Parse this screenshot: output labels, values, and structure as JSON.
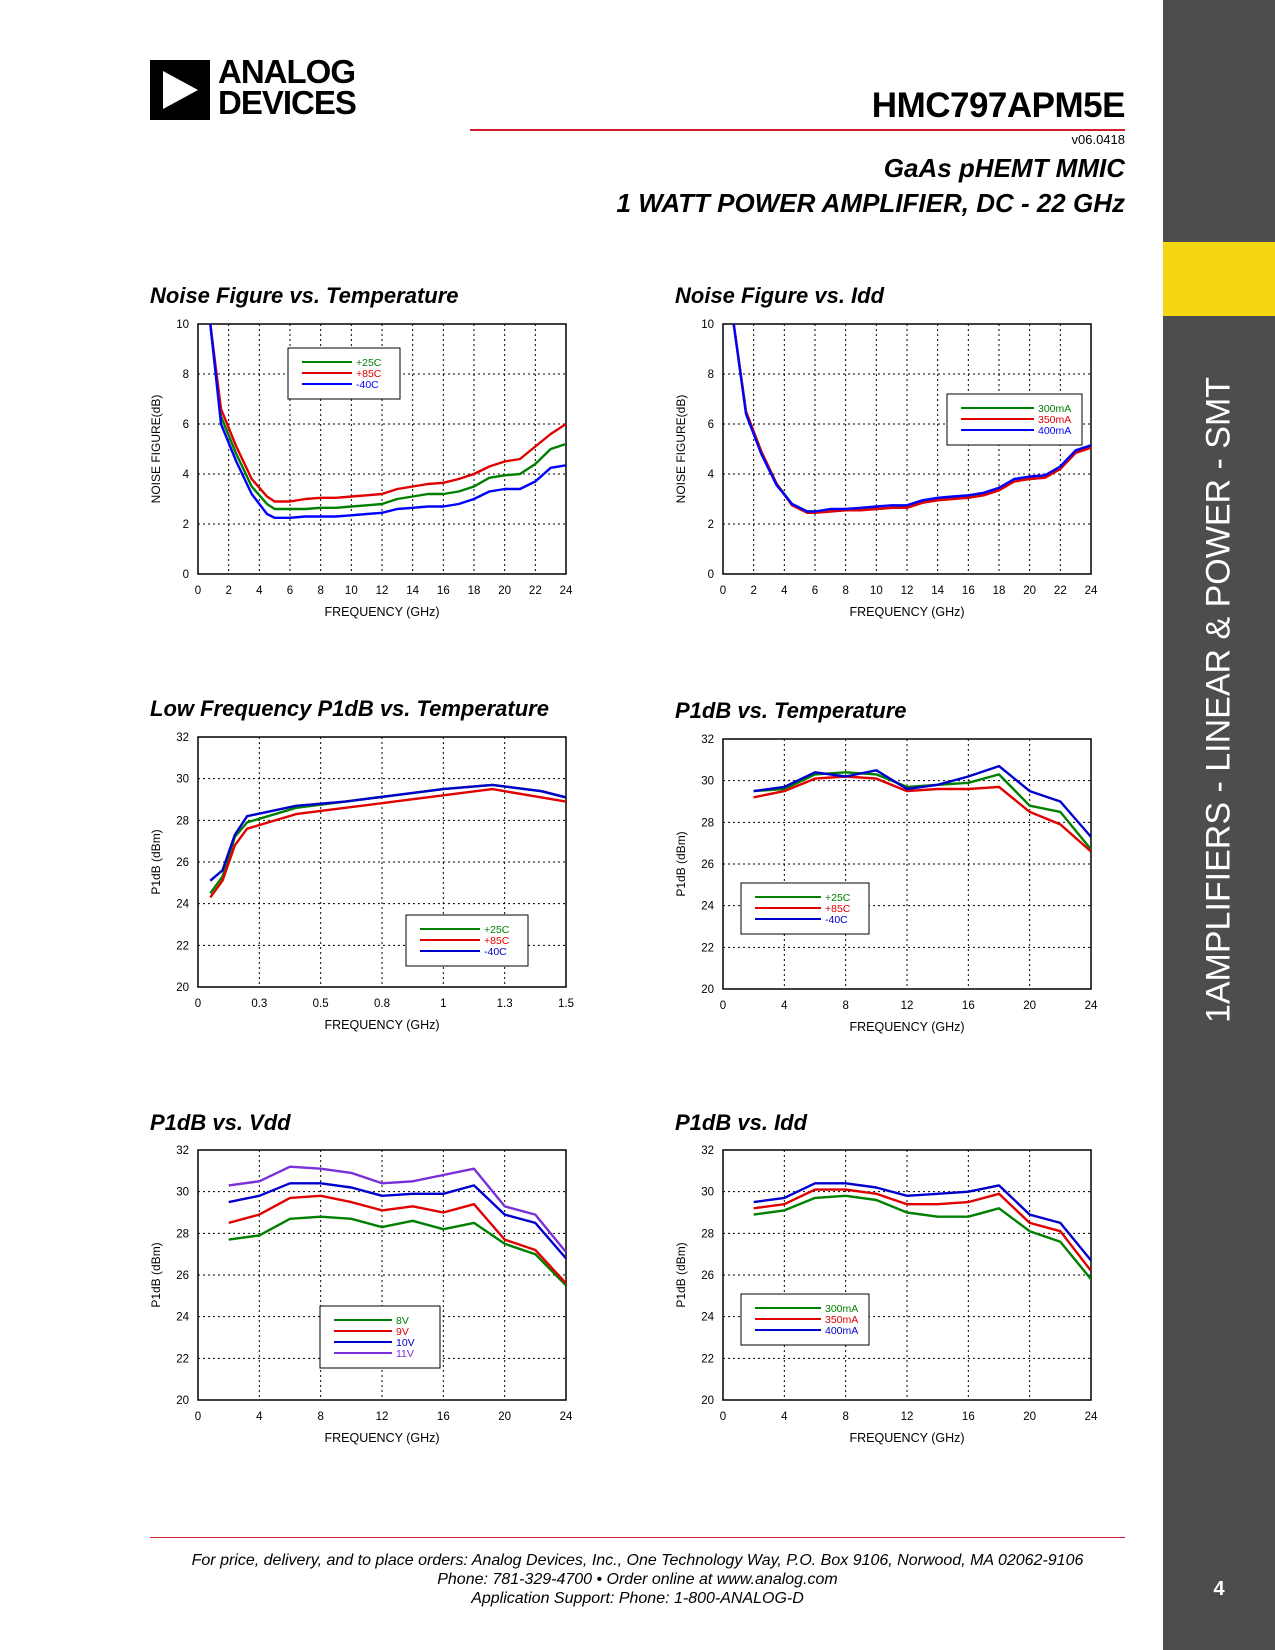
{
  "header": {
    "logo_line1": "ANALOG",
    "logo_line2": "DEVICES",
    "part_number": "HMC797APM5E",
    "version": "v06.0418",
    "subtitle_line1": "GaAs pHEMT MMIC",
    "subtitle_line2": "1 WATT POWER AMPLIFIER, DC - 22 GHz"
  },
  "sidebar": {
    "label": "1AMPLIFIERS - LINEAR & POWER - SMT",
    "page_number": "4",
    "tab_color": "#f5d612",
    "bar_color": "#4d4d4f"
  },
  "footer": {
    "line1": "For price, delivery, and to place orders: Analog Devices, Inc., One Technology Way, P.O. Box 9106, Norwood, MA 02062-9106",
    "line2": "Phone: 781-329-4700 • Order online at www.analog.com",
    "line3": "Application Support: Phone: 1-800-ANALOG-D",
    "rule_color": "#d0202e"
  },
  "chart_data": [
    {
      "id": "nf-temp",
      "type": "line",
      "title": "Noise Figure vs. Temperature",
      "xlabel": "FREQUENCY (GHz)",
      "ylabel": "NOISE FIGURE(dB)",
      "xlim": [
        0,
        24
      ],
      "ylim": [
        0,
        10
      ],
      "xticks": [
        "0",
        "2",
        "4",
        "6",
        "8",
        "10",
        "12",
        "14",
        "16",
        "18",
        "20",
        "22",
        "24"
      ],
      "yticks": [
        "0",
        "2",
        "4",
        "6",
        "8",
        "10"
      ],
      "grid": true,
      "legend": "top-center",
      "series": [
        {
          "name": "+25C",
          "color": "#008000",
          "x": [
            0.8,
            1.5,
            2.5,
            3.5,
            4.5,
            5,
            6,
            7,
            8,
            9,
            10,
            11,
            12,
            13,
            14,
            15,
            16,
            17,
            18,
            19,
            20,
            21,
            22,
            23,
            24
          ],
          "y": [
            10,
            6.3,
            4.8,
            3.5,
            2.8,
            2.6,
            2.6,
            2.6,
            2.65,
            2.65,
            2.7,
            2.75,
            2.8,
            3.0,
            3.1,
            3.2,
            3.2,
            3.3,
            3.5,
            3.85,
            3.95,
            4.0,
            4.4,
            5.0,
            5.2
          ]
        },
        {
          "name": "+85C",
          "color": "#e00000",
          "x": [
            0.8,
            1.5,
            2.5,
            3.5,
            4.5,
            5,
            6,
            7,
            8,
            9,
            10,
            11,
            12,
            13,
            14,
            15,
            16,
            17,
            18,
            19,
            20,
            21,
            22,
            23,
            24
          ],
          "y": [
            10,
            6.6,
            5.1,
            3.8,
            3.1,
            2.9,
            2.9,
            3.0,
            3.05,
            3.05,
            3.1,
            3.15,
            3.2,
            3.4,
            3.5,
            3.6,
            3.65,
            3.8,
            4.0,
            4.3,
            4.5,
            4.6,
            5.1,
            5.6,
            6.0
          ]
        },
        {
          "name": "-40C",
          "color": "#0000ff",
          "x": [
            0.8,
            1.5,
            2.5,
            3.5,
            4.5,
            5,
            6,
            7,
            8,
            9,
            10,
            11,
            12,
            13,
            14,
            15,
            16,
            17,
            18,
            19,
            20,
            21,
            22,
            23,
            24
          ],
          "y": [
            10,
            6.0,
            4.5,
            3.2,
            2.4,
            2.25,
            2.25,
            2.3,
            2.3,
            2.3,
            2.35,
            2.4,
            2.45,
            2.6,
            2.65,
            2.7,
            2.7,
            2.8,
            3.0,
            3.3,
            3.4,
            3.4,
            3.7,
            4.25,
            4.35
          ]
        }
      ]
    },
    {
      "id": "nf-idd",
      "type": "line",
      "title": "Noise Figure vs. Idd",
      "xlabel": "FREQUENCY (GHz)",
      "ylabel": "NOISE FIGURE(dB)",
      "xlim": [
        0,
        24
      ],
      "ylim": [
        0,
        10
      ],
      "xticks": [
        "0",
        "2",
        "4",
        "6",
        "8",
        "10",
        "12",
        "14",
        "16",
        "18",
        "20",
        "22",
        "24"
      ],
      "yticks": [
        "0",
        "2",
        "4",
        "6",
        "8",
        "10"
      ],
      "grid": true,
      "legend": "center-right",
      "series": [
        {
          "name": "300mA",
          "color": "#008000",
          "x": [
            0.7,
            1.5,
            2.5,
            3.5,
            4.5,
            5.5,
            6,
            7,
            8,
            9,
            10,
            11,
            12,
            13,
            14,
            15,
            16,
            17,
            18,
            19,
            20,
            21,
            22,
            23,
            24
          ],
          "y": [
            10,
            6.5,
            4.9,
            3.6,
            2.8,
            2.5,
            2.5,
            2.55,
            2.6,
            2.6,
            2.6,
            2.65,
            2.7,
            2.9,
            3.0,
            3.05,
            3.1,
            3.2,
            3.4,
            3.8,
            3.85,
            3.9,
            4.3,
            4.9,
            5.1
          ]
        },
        {
          "name": "350mA",
          "color": "#e00000",
          "x": [
            0.7,
            1.5,
            2.5,
            3.5,
            4.5,
            5.5,
            6,
            7,
            8,
            9,
            10,
            11,
            12,
            13,
            14,
            15,
            16,
            17,
            18,
            19,
            20,
            21,
            22,
            23,
            24
          ],
          "y": [
            10,
            6.5,
            4.9,
            3.6,
            2.75,
            2.45,
            2.45,
            2.5,
            2.55,
            2.55,
            2.6,
            2.65,
            2.65,
            2.85,
            2.95,
            3.0,
            3.05,
            3.15,
            3.35,
            3.7,
            3.8,
            3.85,
            4.2,
            4.85,
            5.05
          ]
        },
        {
          "name": "400mA",
          "color": "#0000ff",
          "x": [
            0.7,
            1.5,
            2.5,
            3.5,
            4.5,
            5.5,
            6,
            7,
            8,
            9,
            10,
            11,
            12,
            13,
            14,
            15,
            16,
            17,
            18,
            19,
            20,
            21,
            22,
            23,
            24
          ],
          "y": [
            10,
            6.4,
            4.8,
            3.55,
            2.8,
            2.5,
            2.5,
            2.6,
            2.6,
            2.65,
            2.7,
            2.75,
            2.75,
            2.95,
            3.05,
            3.1,
            3.15,
            3.25,
            3.45,
            3.8,
            3.9,
            3.95,
            4.3,
            4.95,
            5.15
          ]
        }
      ]
    },
    {
      "id": "lf-p1db-temp",
      "type": "line",
      "title": "Low Frequency P1dB vs. Temperature",
      "xlabel": "FREQUENCY (GHz)",
      "ylabel": "P1dB (dBm)",
      "xlim": [
        0,
        1.5
      ],
      "ylim": [
        20,
        32
      ],
      "xticks": [
        "0",
        "0.3",
        "0.5",
        "0.8",
        "1",
        "1.3",
        "1.5"
      ],
      "yticks": [
        "20",
        "22",
        "24",
        "26",
        "28",
        "30",
        "32"
      ],
      "grid": true,
      "legend": "bottom-right",
      "series": [
        {
          "name": "+25C",
          "color": "#008000",
          "x": [
            0.05,
            0.1,
            0.15,
            0.2,
            0.4,
            0.6,
            0.8,
            1.0,
            1.2,
            1.4,
            1.5
          ],
          "y": [
            24.5,
            25.3,
            27.2,
            27.9,
            28.6,
            28.9,
            29.2,
            29.5,
            29.7,
            29.4,
            29.1
          ]
        },
        {
          "name": "+85C",
          "color": "#e00000",
          "x": [
            0.05,
            0.1,
            0.15,
            0.2,
            0.4,
            0.6,
            0.8,
            1.0,
            1.2,
            1.4,
            1.5
          ],
          "y": [
            24.3,
            25.1,
            26.8,
            27.6,
            28.3,
            28.6,
            28.9,
            29.2,
            29.5,
            29.1,
            28.9
          ]
        },
        {
          "name": "-40C",
          "color": "#0000cc",
          "x": [
            0.05,
            0.1,
            0.15,
            0.2,
            0.4,
            0.6,
            0.8,
            1.0,
            1.2,
            1.4,
            1.5
          ],
          "y": [
            25.1,
            25.6,
            27.3,
            28.2,
            28.7,
            28.9,
            29.2,
            29.5,
            29.7,
            29.4,
            29.1
          ]
        }
      ]
    },
    {
      "id": "p1db-temp",
      "type": "line",
      "title": "P1dB vs. Temperature",
      "xlabel": "FREQUENCY (GHz)",
      "ylabel": "P1dB (dBm)",
      "xlim": [
        0,
        24
      ],
      "ylim": [
        20,
        32
      ],
      "xticks": [
        "0",
        "4",
        "8",
        "12",
        "16",
        "20",
        "24"
      ],
      "yticks": [
        "20",
        "22",
        "24",
        "26",
        "28",
        "30",
        "32"
      ],
      "grid": true,
      "legend": "center-left",
      "series": [
        {
          "name": "+25C",
          "color": "#008000",
          "x": [
            2,
            4,
            6,
            8,
            10,
            12,
            14,
            16,
            18,
            20,
            22,
            24
          ],
          "y": [
            29.5,
            29.6,
            30.3,
            30.4,
            30.3,
            29.7,
            29.8,
            29.9,
            30.3,
            28.8,
            28.5,
            26.7
          ]
        },
        {
          "name": "+85C",
          "color": "#e00000",
          "x": [
            2,
            4,
            6,
            8,
            10,
            12,
            14,
            16,
            18,
            20,
            22,
            24
          ],
          "y": [
            29.2,
            29.5,
            30.1,
            30.2,
            30.1,
            29.5,
            29.6,
            29.6,
            29.7,
            28.5,
            27.9,
            26.6
          ]
        },
        {
          "name": "-40C",
          "color": "#0000cc",
          "x": [
            2,
            4,
            6,
            8,
            10,
            12,
            14,
            16,
            18,
            20,
            22,
            24
          ],
          "y": [
            29.5,
            29.7,
            30.4,
            30.2,
            30.5,
            29.6,
            29.8,
            30.2,
            30.7,
            29.5,
            29.0,
            27.3
          ]
        }
      ]
    },
    {
      "id": "p1db-vdd",
      "type": "line",
      "title": "P1dB vs. Vdd",
      "xlabel": "FREQUENCY (GHz)",
      "ylabel": "P1dB (dBm)",
      "xlim": [
        0,
        24
      ],
      "ylim": [
        20,
        32
      ],
      "xticks": [
        "0",
        "4",
        "8",
        "12",
        "16",
        "20",
        "24"
      ],
      "yticks": [
        "20",
        "22",
        "24",
        "26",
        "28",
        "30",
        "32"
      ],
      "grid": true,
      "legend": "bottom-center",
      "series": [
        {
          "name": "8V",
          "color": "#008000",
          "x": [
            2,
            4,
            6,
            8,
            10,
            12,
            14,
            16,
            18,
            20,
            22,
            24
          ],
          "y": [
            27.7,
            27.9,
            28.7,
            28.8,
            28.7,
            28.3,
            28.6,
            28.2,
            28.5,
            27.5,
            27.0,
            25.5
          ]
        },
        {
          "name": "9V",
          "color": "#e00000",
          "x": [
            2,
            4,
            6,
            8,
            10,
            12,
            14,
            16,
            18,
            20,
            22,
            24
          ],
          "y": [
            28.5,
            28.9,
            29.7,
            29.8,
            29.5,
            29.1,
            29.3,
            29.0,
            29.4,
            27.7,
            27.2,
            25.6
          ]
        },
        {
          "name": "10V",
          "color": "#0000cc",
          "x": [
            2,
            4,
            6,
            8,
            10,
            12,
            14,
            16,
            18,
            20,
            22,
            24
          ],
          "y": [
            29.5,
            29.8,
            30.4,
            30.4,
            30.2,
            29.8,
            29.9,
            29.9,
            30.3,
            28.9,
            28.5,
            26.8
          ]
        },
        {
          "name": "11V",
          "color": "#7b2fd8",
          "x": [
            2,
            4,
            6,
            8,
            10,
            12,
            14,
            16,
            18,
            20,
            22,
            24
          ],
          "y": [
            30.3,
            30.5,
            31.2,
            31.1,
            30.9,
            30.4,
            30.5,
            30.8,
            31.1,
            29.3,
            28.9,
            27.1
          ]
        }
      ]
    },
    {
      "id": "p1db-idd",
      "type": "line",
      "title": "P1dB vs. Idd",
      "xlabel": "FREQUENCY (GHz)",
      "ylabel": "P1dB (dBm)",
      "xlim": [
        0,
        24
      ],
      "ylim": [
        20,
        32
      ],
      "xticks": [
        "0",
        "4",
        "8",
        "12",
        "16",
        "20",
        "24"
      ],
      "yticks": [
        "20",
        "22",
        "24",
        "26",
        "28",
        "30",
        "32"
      ],
      "grid": true,
      "legend": "center-left",
      "series": [
        {
          "name": "300mA",
          "color": "#008000",
          "x": [
            2,
            4,
            6,
            8,
            10,
            12,
            14,
            16,
            18,
            20,
            22,
            24
          ],
          "y": [
            28.9,
            29.1,
            29.7,
            29.8,
            29.6,
            29.0,
            28.8,
            28.8,
            29.2,
            28.1,
            27.6,
            25.8
          ]
        },
        {
          "name": "350mA",
          "color": "#e00000",
          "x": [
            2,
            4,
            6,
            8,
            10,
            12,
            14,
            16,
            18,
            20,
            22,
            24
          ],
          "y": [
            29.2,
            29.4,
            30.1,
            30.1,
            29.9,
            29.4,
            29.4,
            29.5,
            29.9,
            28.5,
            28.1,
            26.2
          ]
        },
        {
          "name": "400mA",
          "color": "#0000cc",
          "x": [
            2,
            4,
            6,
            8,
            10,
            12,
            14,
            16,
            18,
            20,
            22,
            24
          ],
          "y": [
            29.5,
            29.7,
            30.4,
            30.4,
            30.2,
            29.8,
            29.9,
            30.0,
            30.3,
            28.9,
            28.5,
            26.7
          ]
        }
      ]
    }
  ]
}
